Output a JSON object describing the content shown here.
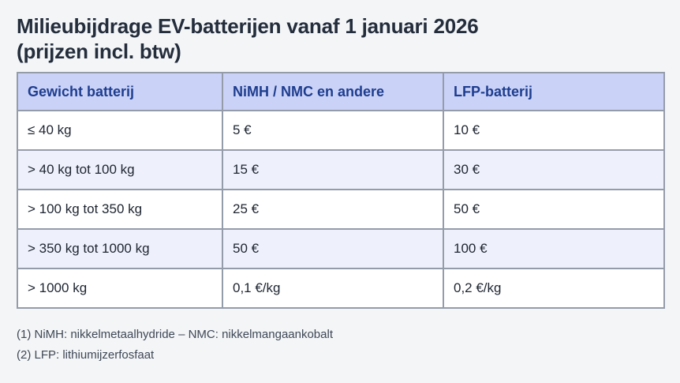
{
  "page": {
    "title_line1": "Milieubijdrage EV-batterijen vanaf 1 januari 2026",
    "title_line2": "(prijzen incl. btw)"
  },
  "table": {
    "headers": [
      "Gewicht batterij",
      "NiMH / NMC en andere",
      "LFP-batterij"
    ],
    "rows": [
      [
        "≤ 40 kg",
        "5 €",
        "10 €"
      ],
      [
        "> 40 kg tot 100 kg",
        "15 €",
        "30 €"
      ],
      [
        "> 100 kg tot 350 kg",
        "25 €",
        "50 €"
      ],
      [
        "> 350 kg tot 1000 kg",
        "50 €",
        "100 €"
      ],
      [
        "> 1000 kg",
        "0,1 €/kg",
        "0,2 €/kg"
      ]
    ]
  },
  "footnotes": [
    "(1) NiMH: nikkelmetaalhydride – NMC: nikkelmangaankobalt",
    "(2) LFP: lithiumijzerfosfaat"
  ],
  "colors": {
    "page_background": "#f3f5f7",
    "header_background": "#cad2f7",
    "header_text": "#1e3d8f",
    "tint_row_background": "#eef1fc",
    "border": "#959ca9",
    "title_text": "#242d3c",
    "cell_text": "#1d2430",
    "footnote_text": "#3f4856"
  }
}
